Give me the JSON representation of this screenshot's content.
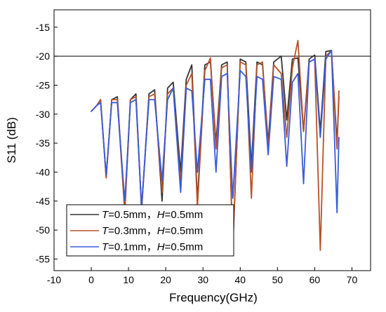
{
  "chart_data": {
    "type": "line",
    "title": "",
    "xlabel": "Frequency(GHz)",
    "ylabel": "S11 (dB)",
    "xlim": [
      -10,
      75
    ],
    "ylim": [
      -57,
      -12
    ],
    "x_ticks": [
      -10,
      0,
      10,
      20,
      30,
      40,
      50,
      60,
      70
    ],
    "y_ticks": [
      -15,
      -20,
      -25,
      -30,
      -35,
      -40,
      -45,
      -50,
      -55
    ],
    "x_tick_labels": [
      "-10",
      "0",
      "10",
      "20",
      "30",
      "40",
      "50",
      "60",
      "70"
    ],
    "y_tick_labels": [
      "-15",
      "-20",
      "-25",
      "-30",
      "-35",
      "-40",
      "-45",
      "-50",
      "-55"
    ],
    "reference_line": {
      "y": -20,
      "color": "#000000"
    },
    "legend": {
      "placement": "lower-left",
      "entries": [
        {
          "param1": "T",
          "value1": "=0.5mm，",
          "param2": "H",
          "value2": "=0.5mm"
        },
        {
          "param1": "T",
          "value1": "=0.3mm，",
          "param2": "H",
          "value2": "=0.5mm"
        },
        {
          "param1": "T",
          "value1": "=0.1mm，",
          "param2": "H",
          "value2": "=0.5mm"
        }
      ]
    },
    "series": [
      {
        "color": "#333333",
        "x": [
          0,
          1.5,
          2.5,
          4,
          5.5,
          7,
          9,
          10.5,
          12,
          13.5,
          15.5,
          17,
          19,
          20.5,
          22,
          24,
          25.5,
          27,
          28.5,
          30.5,
          32,
          33.5,
          35,
          36.5,
          38,
          40,
          41.5,
          43,
          44.5,
          46,
          47.5,
          49,
          51,
          52.5,
          54,
          55.5,
          57,
          58.5,
          60,
          61.5,
          63,
          64.5,
          66,
          66.5
        ],
        "y": [
          -29.5,
          -28.5,
          -27.5,
          -41,
          -27.5,
          -27,
          -46.5,
          -27.5,
          -26.5,
          -46.5,
          -26.5,
          -25.8,
          -45,
          -25.5,
          -24.5,
          -40,
          -24,
          -21.5,
          -45,
          -21.5,
          -21,
          -35,
          -21.5,
          -21,
          -53,
          -20.5,
          -21,
          -39,
          -21,
          -21.5,
          -35,
          -21,
          -20,
          -31,
          -20.5,
          -20.3,
          -33,
          -20.5,
          -19.8,
          -33,
          -19.2,
          -19,
          -35,
          -27
        ]
      },
      {
        "color": "#b5522a",
        "x": [
          0,
          1.5,
          2.5,
          4,
          5.5,
          7,
          9,
          10.5,
          12,
          13.5,
          15.5,
          17,
          19,
          20.5,
          22,
          24,
          25.5,
          27,
          28.5,
          30.5,
          32,
          33.5,
          35,
          36.5,
          38,
          40,
          41.5,
          43,
          44.5,
          46,
          47.5,
          49,
          51,
          52.5,
          54,
          55.5,
          57,
          58.5,
          60,
          61.5,
          63,
          64.5,
          66,
          66.5
        ],
        "y": [
          -29.5,
          -28.5,
          -27.5,
          -41,
          -27.5,
          -27.5,
          -47,
          -27.5,
          -27,
          -46.5,
          -27,
          -26.5,
          -43.5,
          -26.5,
          -25.5,
          -42,
          -25,
          -23,
          -46,
          -22.5,
          -20.3,
          -36,
          -22,
          -21.5,
          -52.5,
          -21,
          -21.5,
          -44.5,
          -21.5,
          -21,
          -36,
          -21.5,
          -23,
          -34,
          -22,
          -17.3,
          -33,
          -21,
          -20.5,
          -53.5,
          -20,
          -19,
          -36,
          -26
        ]
      },
      {
        "color": "#3a5bd9",
        "x": [
          0,
          1.5,
          2.5,
          4,
          5.5,
          7,
          9,
          10.5,
          12,
          13.5,
          15.5,
          17,
          19,
          20.5,
          22,
          24,
          25.5,
          27,
          28.5,
          30.5,
          32,
          33.5,
          35,
          36.5,
          38,
          40,
          41.5,
          43,
          44.5,
          46,
          47.5,
          49,
          51,
          52.5,
          54,
          55.5,
          57,
          58.5,
          60,
          61.5,
          63,
          64.5,
          66,
          66.5
        ],
        "y": [
          -29.5,
          -28.5,
          -28,
          -40.5,
          -28,
          -28,
          -45,
          -28,
          -27.5,
          -46,
          -27.5,
          -27.5,
          -41.5,
          -27.5,
          -25.5,
          -43.5,
          -25.5,
          -26,
          -40,
          -24,
          -24,
          -40,
          -23.5,
          -23,
          -44.5,
          -22.5,
          -23.5,
          -40,
          -23.5,
          -24,
          -37,
          -23.5,
          -24,
          -39,
          -24.5,
          -23,
          -42,
          -21,
          -20.5,
          -34,
          -20.5,
          -19,
          -47,
          -34
        ]
      }
    ]
  }
}
